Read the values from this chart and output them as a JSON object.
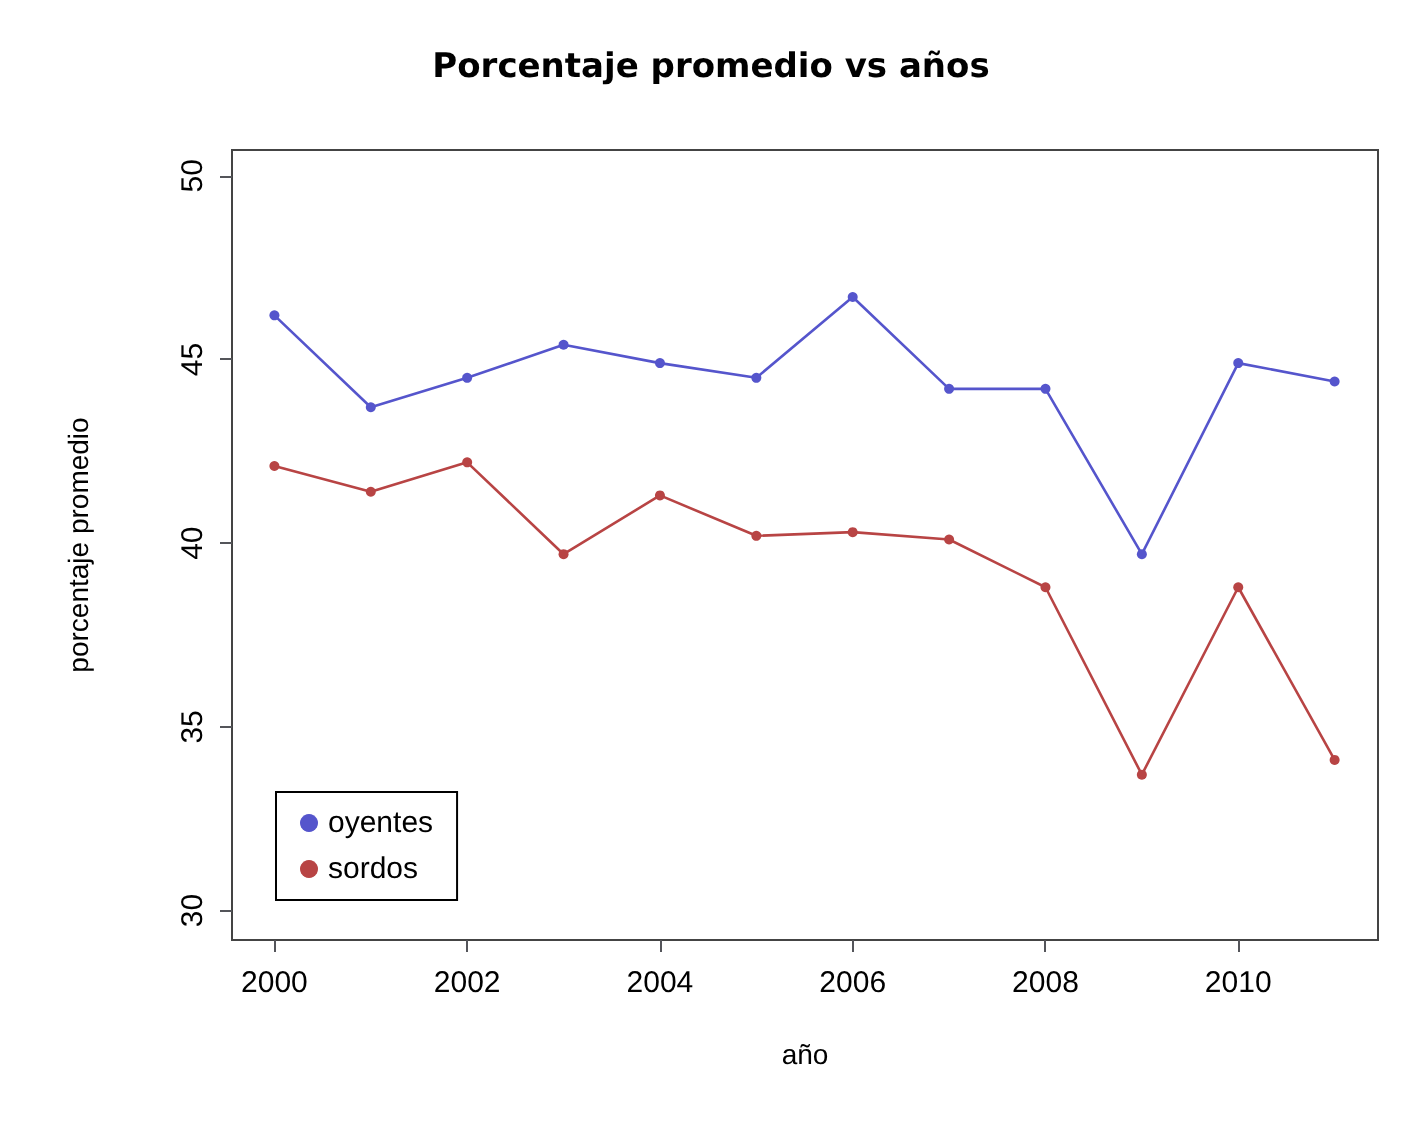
{
  "chart_data": {
    "type": "line",
    "title": "Porcentaje promedio vs años",
    "xlabel": "año",
    "ylabel": "porcentaje promedio",
    "x": [
      2000,
      2001,
      2002,
      2003,
      2004,
      2005,
      2006,
      2007,
      2008,
      2009,
      2010,
      2011
    ],
    "series": [
      {
        "name": "oyentes",
        "color": "#5555cc",
        "values": [
          46.2,
          43.7,
          44.5,
          45.4,
          44.9,
          44.5,
          46.7,
          44.2,
          44.2,
          39.7,
          44.9,
          44.4
        ]
      },
      {
        "name": "sordos",
        "color": "#b84444",
        "values": [
          42.1,
          41.4,
          42.2,
          39.7,
          41.3,
          40.2,
          40.3,
          40.1,
          38.8,
          33.7,
          38.8,
          34.1
        ]
      }
    ],
    "xlim": [
      1999.56,
      2011.45
    ],
    "xticks": [
      2000,
      2002,
      2004,
      2006,
      2008,
      2010
    ],
    "ylim": [
      29.2,
      50.7
    ],
    "yticks": [
      30,
      35,
      40,
      45,
      50
    ],
    "legend": "bottom left",
    "marker": "circle",
    "line_style": "solid",
    "grid": false
  }
}
